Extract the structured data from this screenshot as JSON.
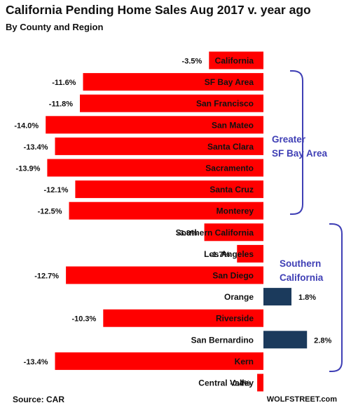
{
  "title": "California Pending Home Sales Aug 2017 v. year ago",
  "subtitle": "By County and Region",
  "source": "Source: CAR",
  "credit": "WOLFSTREET.com",
  "colors": {
    "negative": "#ff0000",
    "positive": "#1b3a5c",
    "bracket": "#3f3fb5"
  },
  "chart_data": {
    "type": "bar",
    "orientation": "horizontal",
    "categories": [
      "California",
      "SF Bay Area",
      "San Francisco",
      "San Mateo",
      "Santa Clara",
      "Sacramento",
      "Santa Cruz",
      "Monterey",
      "Southern California",
      "Los Angeles",
      "San Diego",
      "Orange",
      "Riverside",
      "San Bernardino",
      "Kern",
      "Central Valley"
    ],
    "values": [
      -3.5,
      -11.6,
      -11.8,
      -14.0,
      -13.4,
      -13.9,
      -12.1,
      -12.5,
      -3.8,
      -1.7,
      -12.7,
      1.8,
      -10.3,
      2.8,
      -13.4,
      -0.4
    ],
    "value_labels": [
      "-3.5%",
      "-11.6%",
      "-11.8%",
      "-14.0%",
      "-13.4%",
      "-13.9%",
      "-12.1%",
      "-12.5%",
      "-3.8%",
      "-1.7%",
      "-12.7%",
      "1.8%",
      "-10.3%",
      "2.8%",
      "-13.4%",
      "-0.4%"
    ],
    "unit": "%",
    "groups": [
      {
        "label_lines": [
          "Greater",
          "SF Bay Area"
        ],
        "categories": [
          "SF Bay Area",
          "San Francisco",
          "San Mateo",
          "Santa Clara",
          "Sacramento",
          "Santa Cruz",
          "Monterey"
        ]
      },
      {
        "label_lines": [
          "Southern",
          "California"
        ],
        "categories": [
          "Southern California",
          "Los Angeles",
          "San Diego",
          "Orange",
          "Riverside",
          "San Bernardino",
          "Kern",
          "Central Valley"
        ]
      }
    ],
    "title": "California Pending Home Sales Aug 2017 v. year ago",
    "xlabel": "",
    "ylabel": ""
  }
}
